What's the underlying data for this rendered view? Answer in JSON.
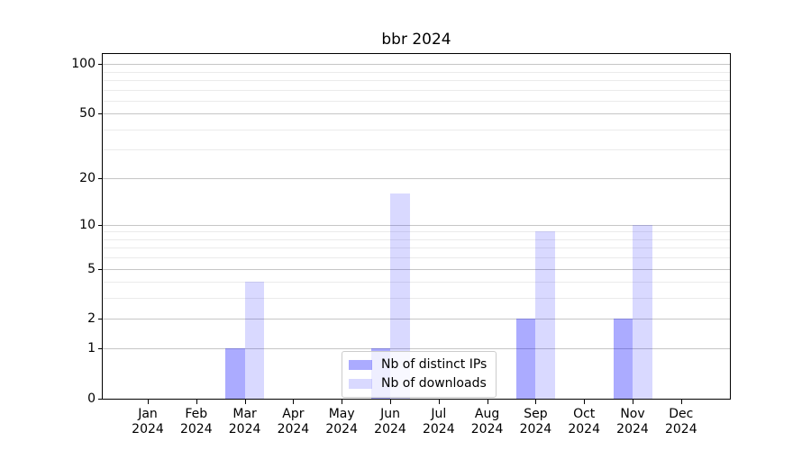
{
  "chart_data": {
    "type": "bar",
    "title": "bbr 2024",
    "categories": [
      "Jan 2024",
      "Feb 2024",
      "Mar 2024",
      "Apr 2024",
      "May 2024",
      "Jun 2024",
      "Jul 2024",
      "Aug 2024",
      "Sep 2024",
      "Oct 2024",
      "Nov 2024",
      "Dec 2024"
    ],
    "series": [
      {
        "name": "Nb of distinct IPs",
        "color": "rgba(0,0,255,0.33)",
        "values": [
          0,
          0,
          1,
          0,
          0,
          1,
          0,
          0,
          2,
          0,
          2,
          0
        ]
      },
      {
        "name": "Nb of downloads",
        "color": "rgba(0,0,255,0.15)",
        "values": [
          0,
          0,
          4,
          0,
          0,
          16,
          0,
          0,
          9,
          0,
          10,
          0
        ]
      }
    ],
    "yaxis": {
      "scale": "log1p",
      "ticks": [
        0,
        1,
        2,
        5,
        10,
        20,
        50,
        100
      ],
      "minor_gridlines": [
        3,
        4,
        6,
        7,
        8,
        9,
        30,
        40,
        60,
        70,
        80,
        90
      ],
      "ylim": [
        0,
        115
      ]
    },
    "xlabel": "",
    "ylabel": "",
    "grid": true,
    "legend_position": "lower center",
    "colors": {
      "major_grid": "#c6c6c6",
      "minor_grid": "#ebebeb",
      "axis": "#000000",
      "legend_border": "#cccccc"
    }
  }
}
